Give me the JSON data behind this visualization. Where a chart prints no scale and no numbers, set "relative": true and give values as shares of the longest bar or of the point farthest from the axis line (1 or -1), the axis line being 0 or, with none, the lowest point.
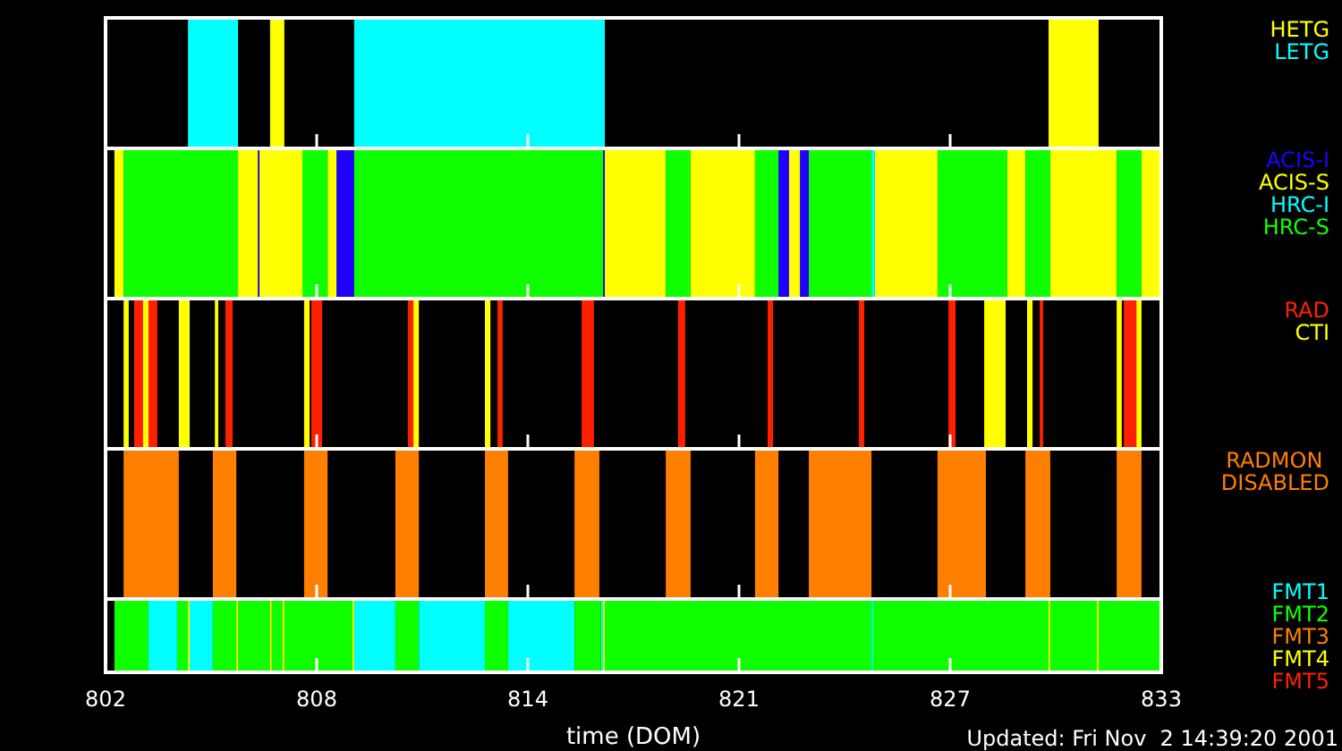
{
  "chart_data": [
    {
      "type": "area",
      "relative": true,
      "legend": "top right",
      "tick_labels": false,
      "xlim": [
        802,
        833
      ],
      "xticks": [
        {
          "value": 802,
          "label": null
        },
        {
          "value": 808.2,
          "label": null
        },
        {
          "value": 814.4,
          "label": null
        },
        {
          "value": 820.6,
          "label": null
        },
        {
          "value": 826.8,
          "label": null
        },
        {
          "value": 833,
          "label": null
        }
      ],
      "series": [
        {
          "name": "HETG",
          "color": "#ffff00",
          "x": [
            806.83,
            806.83,
            807.25,
            807.25,
            829.69,
            829.69,
            831.16,
            831.16
          ],
          "values": [
            0,
            1,
            1,
            0,
            0,
            1,
            1,
            0
          ]
        },
        {
          "name": "LETG",
          "color": "#00ffff",
          "x": [
            804.42,
            804.42,
            805.89,
            805.89,
            809.3,
            809.3,
            816.66,
            816.66
          ],
          "values": [
            0,
            1,
            1,
            0,
            0,
            1,
            1,
            0
          ]
        }
      ]
    },
    {
      "type": "area",
      "relative": true,
      "legend": "top right",
      "tick_labels": false,
      "xlim": [
        802,
        833
      ],
      "xticks": [
        {
          "value": 802,
          "label": null
        },
        {
          "value": 808.2,
          "label": null
        },
        {
          "value": 814.4,
          "label": null
        },
        {
          "value": 820.6,
          "label": null
        },
        {
          "value": 826.8,
          "label": null
        },
        {
          "value": 833,
          "label": null
        }
      ],
      "series": [
        {
          "name": "ACIS-I",
          "color": "#2000ff",
          "x": [
            806.47,
            806.47,
            806.52,
            806.52,
            808.78,
            808.78,
            809.3,
            809.3,
            816.61,
            816.61,
            816.66,
            816.66,
            821.76,
            821.76,
            822.07,
            822.07,
            822.39,
            822.39,
            822.65,
            822.65
          ],
          "values": [
            0,
            1,
            1,
            0,
            0,
            1,
            1,
            0,
            0,
            1,
            1,
            0,
            0,
            1,
            1,
            0,
            0,
            1,
            1,
            0
          ]
        },
        {
          "name": "ACIS-S",
          "color": "#ffff00",
          "x": [
            802.26,
            802.26,
            802.53,
            802.53,
            805.89,
            805.89,
            806.47,
            806.47,
            806.52,
            806.52,
            807.78,
            807.78,
            808.52,
            808.52,
            808.78,
            808.78,
            816.66,
            816.66,
            818.45,
            818.45,
            819.18,
            819.18,
            821.07,
            821.07,
            822.07,
            822.07,
            822.39,
            822.39,
            824.59,
            824.59,
            826.43,
            826.43,
            828.48,
            828.48,
            829.01,
            829.01,
            829.74,
            829.74,
            831.69,
            831.69,
            832.42,
            832.42,
            833,
            833
          ],
          "values": [
            0,
            1,
            1,
            0,
            0,
            1,
            1,
            0,
            0,
            1,
            1,
            0,
            0,
            1,
            1,
            0,
            0,
            1,
            1,
            0,
            0,
            1,
            1,
            0,
            0,
            1,
            1,
            0,
            0,
            1,
            1,
            0,
            0,
            1,
            1,
            0,
            0,
            1,
            1,
            0,
            0,
            1,
            1,
            0
          ]
        },
        {
          "name": "HRC-I",
          "color": "#00ffff",
          "x": [
            824.49,
            824.49,
            824.59,
            824.59
          ],
          "values": [
            0,
            1,
            1,
            0
          ]
        },
        {
          "name": "HRC-S",
          "color": "#10ff00",
          "x": [
            802.53,
            802.53,
            805.89,
            805.89,
            807.78,
            807.78,
            808.52,
            808.52,
            809.3,
            809.3,
            816.61,
            816.61,
            818.45,
            818.45,
            819.18,
            819.18,
            821.07,
            821.07,
            821.76,
            821.76,
            822.65,
            822.65,
            824.49,
            824.49,
            826.43,
            826.43,
            828.48,
            828.48,
            829.01,
            829.01,
            829.74,
            829.74,
            831.69,
            831.69,
            832.42,
            832.42
          ],
          "values": [
            0,
            1,
            1,
            0,
            0,
            1,
            1,
            0,
            0,
            1,
            1,
            0,
            0,
            1,
            1,
            0,
            0,
            1,
            1,
            0,
            0,
            1,
            1,
            0,
            0,
            1,
            1,
            0,
            0,
            1,
            1,
            0,
            0,
            1,
            1,
            0
          ]
        }
      ]
    },
    {
      "type": "area",
      "relative": true,
      "legend": "top right",
      "tick_labels": false,
      "xlim": [
        802,
        833
      ],
      "xticks": [
        {
          "value": 802,
          "label": null
        },
        {
          "value": 808.2,
          "label": null
        },
        {
          "value": 814.4,
          "label": null
        },
        {
          "value": 820.6,
          "label": null
        },
        {
          "value": 826.8,
          "label": null
        },
        {
          "value": 833,
          "label": null
        }
      ],
      "series": [
        {
          "name": "RAD",
          "color": "#ff2000",
          "x": [
            802.84,
            802.84,
            803.1,
            803.1,
            803.26,
            803.26,
            803.52,
            803.52,
            805.52,
            805.52,
            805.73,
            805.73,
            808.04,
            808.04,
            808.36,
            808.36,
            810.88,
            810.88,
            811.04,
            811.04,
            813.51,
            813.51,
            813.66,
            813.66,
            815.98,
            815.98,
            816.34,
            816.34,
            818.81,
            818.81,
            819.02,
            819.02,
            821.44,
            821.44,
            821.6,
            821.6,
            824.12,
            824.12,
            824.28,
            824.28,
            826.75,
            826.75,
            826.96,
            826.96,
            829.43,
            829.43,
            829.53,
            829.53,
            831.9,
            831.9,
            832.27,
            832.27
          ],
          "values": [
            0,
            1,
            1,
            0,
            0,
            1,
            1,
            0,
            0,
            1,
            1,
            0,
            0,
            1,
            1,
            0,
            0,
            1,
            1,
            0,
            0,
            1,
            1,
            0,
            0,
            1,
            1,
            0,
            0,
            1,
            1,
            0,
            0,
            1,
            1,
            0,
            0,
            1,
            1,
            0,
            0,
            1,
            1,
            0,
            0,
            1,
            1,
            0,
            0,
            1,
            1,
            0
          ]
        },
        {
          "name": "CTI",
          "color": "#ffff00",
          "x": [
            802.53,
            802.53,
            802.68,
            802.68,
            803.1,
            803.1,
            803.26,
            803.26,
            804.15,
            804.15,
            804.47,
            804.47,
            805.21,
            805.21,
            805.31,
            805.31,
            807.83,
            807.83,
            807.99,
            807.99,
            811.04,
            811.04,
            811.2,
            811.2,
            813.14,
            813.14,
            813.3,
            813.3,
            827.8,
            827.8,
            828.43,
            828.43,
            829.06,
            829.06,
            829.22,
            829.22,
            831.69,
            831.69,
            831.84,
            831.84,
            832.27,
            832.27,
            832.42,
            832.42
          ],
          "values": [
            0,
            1,
            1,
            0,
            0,
            1,
            1,
            0,
            0,
            1,
            1,
            0,
            0,
            1,
            1,
            0,
            0,
            1,
            1,
            0,
            0,
            1,
            1,
            0,
            0,
            1,
            1,
            0,
            0,
            1,
            1,
            0,
            0,
            1,
            1,
            0,
            0,
            1,
            1,
            0,
            0,
            1,
            1,
            0
          ]
        }
      ]
    },
    {
      "type": "area",
      "relative": true,
      "legend": "top right",
      "tick_labels": false,
      "xlim": [
        802,
        833
      ],
      "xticks": [
        {
          "value": 802,
          "label": null
        },
        {
          "value": 808.2,
          "label": null
        },
        {
          "value": 814.4,
          "label": null
        },
        {
          "value": 820.6,
          "label": null
        },
        {
          "value": 826.8,
          "label": null
        },
        {
          "value": 833,
          "label": null
        }
      ],
      "series": [
        {
          "name": "RADMON DISABLED",
          "color": "#ff7f00",
          "x": [
            802.53,
            802.53,
            804.15,
            804.15,
            805.15,
            805.15,
            805.84,
            805.84,
            807.83,
            807.83,
            808.52,
            808.52,
            810.51,
            810.51,
            811.2,
            811.2,
            813.14,
            813.14,
            813.82,
            813.82,
            815.77,
            815.77,
            816.5,
            816.5,
            818.45,
            818.45,
            819.18,
            819.18,
            821.07,
            821.07,
            821.76,
            821.76,
            822.65,
            822.65,
            824.49,
            824.49,
            826.43,
            826.43,
            827.85,
            827.85,
            829.01,
            829.01,
            829.74,
            829.74,
            831.69,
            831.69,
            832.42,
            832.42
          ],
          "values": [
            0,
            1,
            1,
            0,
            0,
            1,
            1,
            0,
            0,
            1,
            1,
            0,
            0,
            1,
            1,
            0,
            0,
            1,
            1,
            0,
            0,
            1,
            1,
            0,
            0,
            1,
            1,
            0,
            0,
            1,
            1,
            0,
            0,
            1,
            1,
            0,
            0,
            1,
            1,
            0,
            0,
            1,
            1,
            0,
            0,
            1,
            1,
            0
          ]
        }
      ]
    },
    {
      "type": "area",
      "relative": true,
      "legend": "right",
      "tick_labels": "x",
      "xlabel": "time (DOM)",
      "annotations": [
        "Updated: Fri Nov  2 14:39:20 2001"
      ],
      "xlim": [
        802,
        833
      ],
      "xticks": [
        802,
        {
          "value": 808.2,
          "label": "808"
        },
        {
          "value": 814.4,
          "label": "814"
        },
        {
          "value": 820.6,
          "label": "821"
        },
        {
          "value": 826.8,
          "label": "827"
        },
        833
      ],
      "series": [
        {
          "name": "FMT1",
          "color": "#00ffff",
          "x": [
            803.26,
            803.26,
            804.1,
            804.1,
            804.47,
            804.47,
            805.15,
            805.15,
            809.3,
            809.3,
            810.51,
            810.51,
            811.2,
            811.2,
            813.14,
            813.14,
            813.82,
            813.82,
            815.77,
            815.77,
            816.55,
            816.55,
            816.61,
            816.61,
            824.49,
            824.49,
            824.54,
            824.54
          ],
          "values": [
            0,
            1,
            1,
            0,
            0,
            1,
            1,
            0,
            0,
            1,
            1,
            0,
            0,
            1,
            1,
            0,
            0,
            1,
            1,
            0,
            0,
            1,
            1,
            0,
            0,
            1,
            1,
            0
          ]
        },
        {
          "name": "FMT2",
          "color": "#10ff00",
          "x": [
            802.26,
            802.26,
            803.26,
            803.26,
            804.1,
            804.1,
            804.42,
            804.42,
            805.15,
            805.15,
            805.84,
            805.84,
            805.89,
            805.89,
            806.83,
            806.83,
            806.88,
            806.88,
            807.2,
            807.2,
            807.25,
            807.25,
            809.25,
            809.25,
            810.51,
            810.51,
            811.2,
            811.2,
            813.14,
            813.14,
            813.82,
            813.82,
            815.77,
            815.77,
            816.55,
            816.55,
            816.66,
            816.66,
            824.49,
            824.49,
            824.54,
            824.54,
            829.69,
            829.69,
            829.74,
            829.74,
            831.11,
            831.11,
            831.16,
            831.16,
            833,
            833
          ],
          "values": [
            0,
            1,
            1,
            0,
            0,
            1,
            1,
            0,
            0,
            1,
            1,
            0,
            0,
            1,
            1,
            0,
            0,
            1,
            1,
            0,
            0,
            1,
            1,
            0,
            0,
            1,
            1,
            0,
            0,
            1,
            1,
            0,
            0,
            1,
            1,
            0,
            0,
            1,
            1,
            0,
            0,
            1,
            1,
            0,
            0,
            1,
            1,
            0,
            0,
            1,
            1,
            0
          ]
        },
        {
          "name": "FMT3",
          "color": "#ff7f00"
        },
        {
          "name": "FMT4",
          "color": "#ffff00",
          "x": [
            804.42,
            804.42,
            804.47,
            804.47,
            805.84,
            805.84,
            805.89,
            805.89,
            806.83,
            806.83,
            806.88,
            806.88,
            807.2,
            807.2,
            807.25,
            807.25,
            809.25,
            809.25,
            809.3,
            809.3,
            816.61,
            816.61,
            816.66,
            816.66,
            829.69,
            829.69,
            829.74,
            829.74,
            831.11,
            831.11,
            831.16,
            831.16
          ],
          "values": [
            0,
            1,
            1,
            0,
            0,
            1,
            1,
            0,
            0,
            1,
            1,
            0,
            0,
            1,
            1,
            0,
            0,
            1,
            1,
            0,
            0,
            1,
            1,
            0,
            0,
            1,
            1,
            0,
            0,
            1,
            1,
            0
          ]
        },
        {
          "name": "FMT5",
          "color": "#ff2000"
        }
      ]
    }
  ]
}
